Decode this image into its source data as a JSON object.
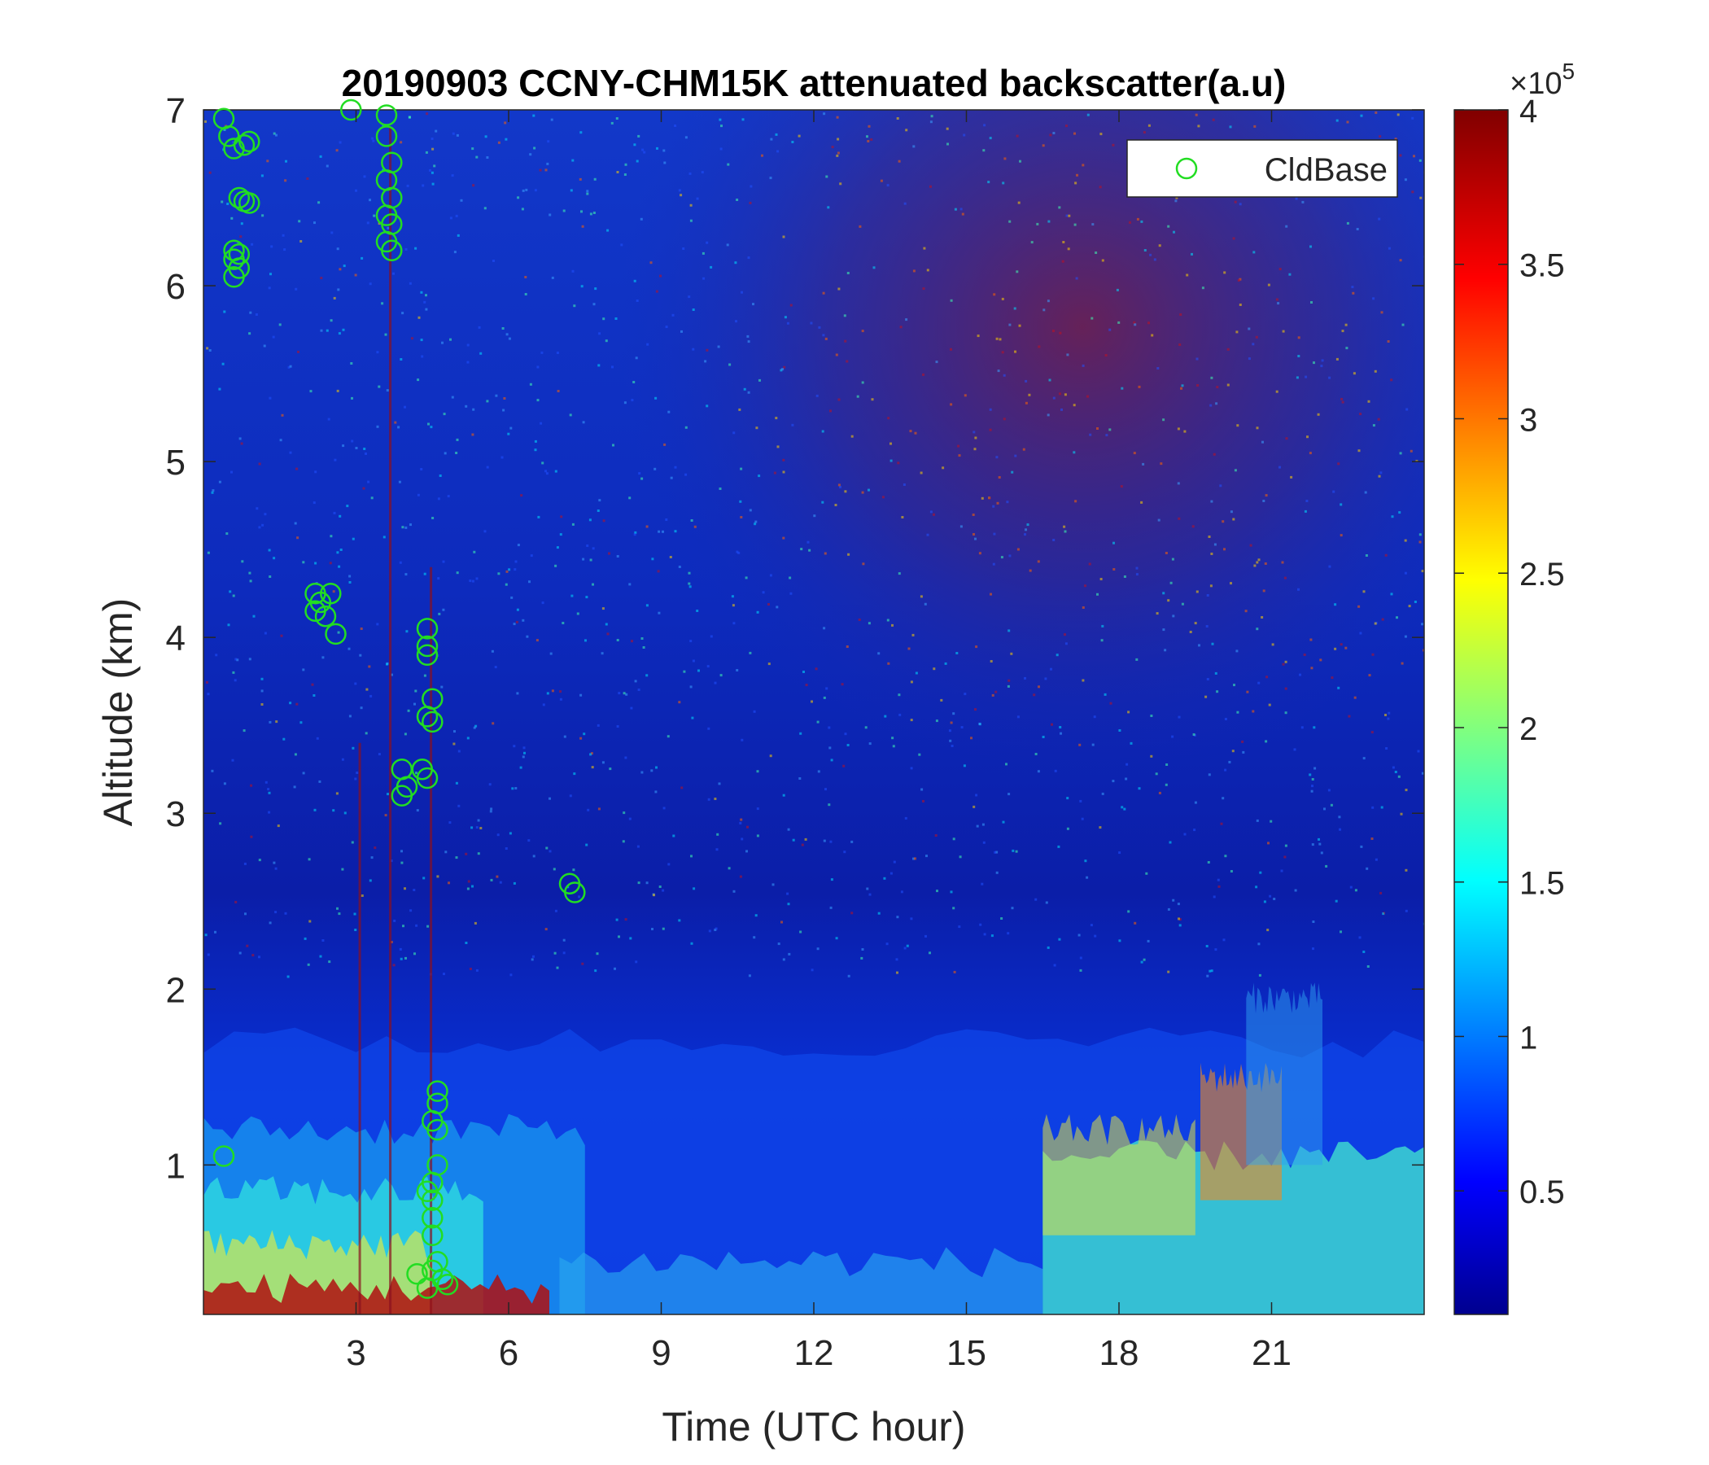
{
  "chart_data": {
    "type": "heatmap",
    "title": "20190903 CCNY-CHM15K attenuated backscatter(a.u)",
    "xlabel": "Time (UTC hour)",
    "ylabel": "Altitude (km)",
    "xlim": [
      0,
      24
    ],
    "ylim": [
      0.15,
      7
    ],
    "x_ticks": [
      3,
      6,
      9,
      12,
      15,
      18,
      21
    ],
    "y_ticks": [
      1,
      2,
      3,
      4,
      5,
      6,
      7
    ],
    "colorbar": {
      "colormap": "jet",
      "min": 0.1,
      "max": 4,
      "ticks": [
        0.5,
        1,
        1.5,
        2,
        2.5,
        3,
        3.5,
        4
      ],
      "exponent_label": "×10",
      "exponent_power": "5"
    },
    "legend": {
      "position": "top-right",
      "entries": [
        "CldBase"
      ]
    },
    "cloud_base": {
      "name": "CldBase",
      "marker": "circle",
      "color": "#22dd22",
      "points": [
        [
          0.4,
          6.95
        ],
        [
          0.5,
          6.85
        ],
        [
          0.6,
          6.78
        ],
        [
          0.8,
          6.8
        ],
        [
          0.9,
          6.82
        ],
        [
          0.7,
          6.5
        ],
        [
          0.8,
          6.48
        ],
        [
          0.9,
          6.47
        ],
        [
          0.6,
          6.2
        ],
        [
          0.6,
          6.15
        ],
        [
          0.7,
          6.1
        ],
        [
          0.6,
          6.05
        ],
        [
          0.7,
          6.18
        ],
        [
          2.9,
          7.0
        ],
        [
          3.6,
          6.97
        ],
        [
          3.6,
          6.85
        ],
        [
          3.7,
          6.7
        ],
        [
          3.6,
          6.6
        ],
        [
          3.7,
          6.5
        ],
        [
          3.6,
          6.4
        ],
        [
          3.7,
          6.35
        ],
        [
          3.6,
          6.25
        ],
        [
          3.7,
          6.2
        ],
        [
          2.2,
          4.25
        ],
        [
          2.3,
          4.2
        ],
        [
          2.2,
          4.15
        ],
        [
          2.4,
          4.12
        ],
        [
          2.5,
          4.25
        ],
        [
          2.6,
          4.02
        ],
        [
          4.4,
          4.05
        ],
        [
          4.4,
          3.95
        ],
        [
          4.4,
          3.9
        ],
        [
          4.5,
          3.65
        ],
        [
          4.4,
          3.55
        ],
        [
          4.5,
          3.52
        ],
        [
          4.3,
          3.25
        ],
        [
          4.4,
          3.2
        ],
        [
          3.9,
          3.25
        ],
        [
          4.0,
          3.15
        ],
        [
          3.9,
          3.1
        ],
        [
          7.2,
          2.6
        ],
        [
          7.3,
          2.55
        ],
        [
          0.4,
          1.05
        ],
        [
          4.6,
          1.42
        ],
        [
          4.6,
          1.35
        ],
        [
          4.5,
          1.25
        ],
        [
          4.6,
          1.2
        ],
        [
          4.6,
          1.0
        ],
        [
          4.5,
          0.9
        ],
        [
          4.4,
          0.85
        ],
        [
          4.5,
          0.8
        ],
        [
          4.5,
          0.7
        ],
        [
          4.5,
          0.6
        ],
        [
          4.6,
          0.45
        ],
        [
          4.5,
          0.4
        ],
        [
          4.7,
          0.35
        ],
        [
          4.8,
          0.32
        ],
        [
          4.2,
          0.38
        ],
        [
          4.4,
          0.3
        ]
      ]
    }
  }
}
